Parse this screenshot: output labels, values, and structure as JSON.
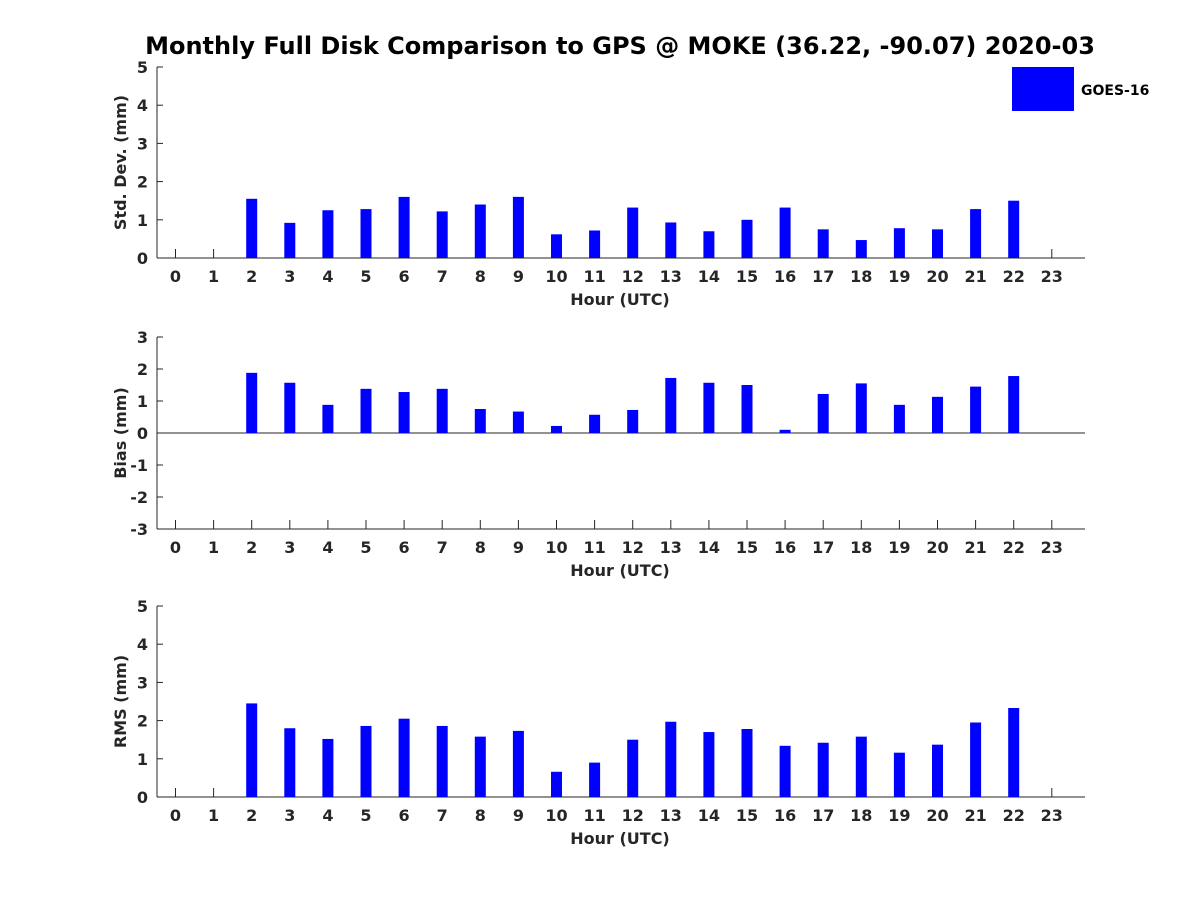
{
  "title": "Monthly Full Disk Comparison to GPS @ MOKE (36.22, -90.07) 2020-03",
  "legend": {
    "label": "GOES-16",
    "color": "#0000ff",
    "placement": "top-right"
  },
  "chart_data": [
    {
      "type": "bar",
      "name": "std_dev",
      "xlabel": "Hour (UTC)",
      "ylabel": "Std. Dev. (mm)",
      "ylim": [
        0,
        5
      ],
      "yticks": [
        "0",
        "1",
        "2",
        "3",
        "4",
        "5"
      ],
      "categories": [
        "0",
        "1",
        "2",
        "3",
        "4",
        "5",
        "6",
        "7",
        "8",
        "9",
        "10",
        "11",
        "12",
        "13",
        "14",
        "15",
        "16",
        "17",
        "18",
        "19",
        "20",
        "21",
        "22",
        "23"
      ],
      "series": [
        {
          "name": "GOES-16",
          "color": "#0000ff",
          "values": [
            null,
            null,
            1.55,
            0.92,
            1.25,
            1.28,
            1.6,
            1.22,
            1.4,
            1.6,
            0.62,
            0.72,
            1.32,
            0.93,
            0.7,
            1.0,
            1.32,
            0.75,
            0.47,
            0.78,
            0.75,
            1.28,
            1.5,
            null
          ]
        }
      ]
    },
    {
      "type": "bar",
      "name": "bias",
      "xlabel": "Hour (UTC)",
      "ylabel": "Bias (mm)",
      "ylim": [
        -3,
        3
      ],
      "yticks": [
        "-3",
        "-2",
        "-1",
        "0",
        "1",
        "2",
        "3"
      ],
      "categories": [
        "0",
        "1",
        "2",
        "3",
        "4",
        "5",
        "6",
        "7",
        "8",
        "9",
        "10",
        "11",
        "12",
        "13",
        "14",
        "15",
        "16",
        "17",
        "18",
        "19",
        "20",
        "21",
        "22",
        "23"
      ],
      "series": [
        {
          "name": "GOES-16",
          "color": "#0000ff",
          "values": [
            null,
            null,
            1.88,
            1.57,
            0.88,
            1.38,
            1.28,
            1.38,
            0.75,
            0.67,
            0.22,
            0.57,
            0.72,
            1.72,
            1.57,
            1.5,
            0.1,
            1.22,
            1.55,
            0.88,
            1.13,
            1.45,
            1.78,
            null
          ]
        }
      ]
    },
    {
      "type": "bar",
      "name": "rms",
      "xlabel": "Hour (UTC)",
      "ylabel": "RMS (mm)",
      "ylim": [
        0,
        5
      ],
      "yticks": [
        "0",
        "1",
        "2",
        "3",
        "4",
        "5"
      ],
      "categories": [
        "0",
        "1",
        "2",
        "3",
        "4",
        "5",
        "6",
        "7",
        "8",
        "9",
        "10",
        "11",
        "12",
        "13",
        "14",
        "15",
        "16",
        "17",
        "18",
        "19",
        "20",
        "21",
        "22",
        "23"
      ],
      "series": [
        {
          "name": "GOES-16",
          "color": "#0000ff",
          "values": [
            null,
            null,
            2.45,
            1.8,
            1.52,
            1.86,
            2.05,
            1.86,
            1.58,
            1.73,
            0.66,
            0.9,
            1.5,
            1.97,
            1.7,
            1.78,
            1.34,
            1.42,
            1.58,
            1.16,
            1.37,
            1.95,
            2.33,
            null
          ]
        }
      ]
    }
  ]
}
